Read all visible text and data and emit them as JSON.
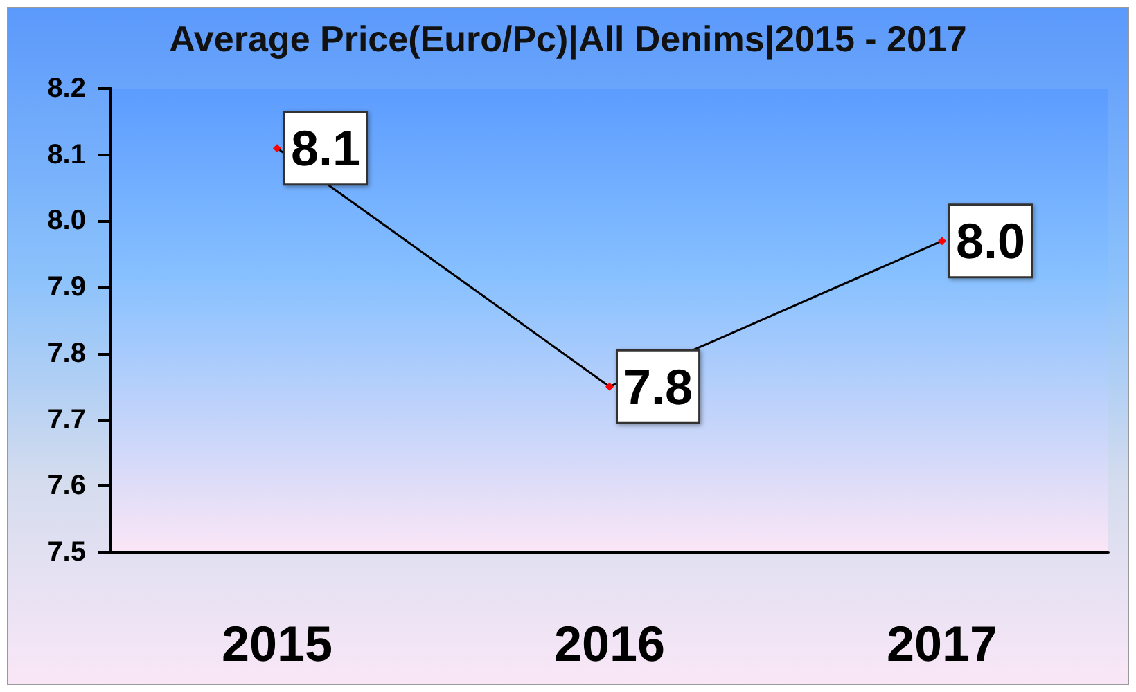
{
  "chart_data": {
    "type": "line",
    "title": "Average Price(Euro/Pc)|All Denims|2015 - 2017",
    "categories": [
      "2015",
      "2016",
      "2017"
    ],
    "series": [
      {
        "color": "#000000",
        "colors": [
          "#ff0000",
          "#ff0000",
          "#ff0000"
        ],
        "values": [
          8.11,
          7.75,
          7.97
        ],
        "value_labels": [
          "8.1",
          "7.8",
          "8.0"
        ]
      }
    ],
    "ylim": [
      7.5,
      8.2
    ],
    "yticks": [
      7.5,
      7.6,
      7.7,
      7.8,
      7.9,
      {
        "value": 8,
        "label": "8.0"
      },
      8.1,
      8.2
    ],
    "marker": "diamond"
  }
}
